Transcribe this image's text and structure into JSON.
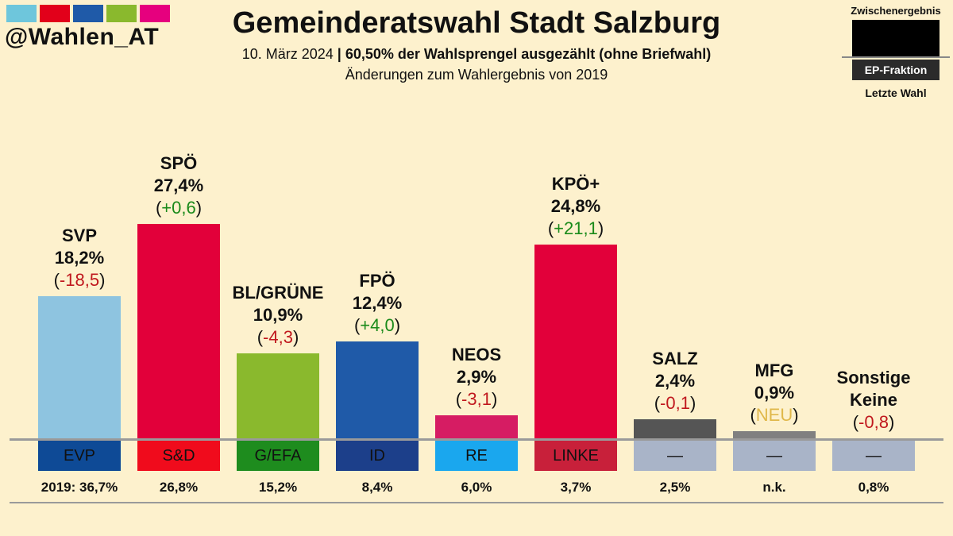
{
  "header": {
    "handle": "@Wahlen_AT",
    "title": "Gemeinderatswahl Stadt Salzburg",
    "date": "10. März 2024",
    "separator": "|",
    "status": "60,50% der Wahlsprengel ausgezählt (ohne Briefwahl)",
    "subtitle2": "Änderungen zum Wahlergebnis von 2019",
    "logo_colors": [
      "#6ec6dc",
      "#e2001a",
      "#1f5aa8",
      "#8ab92d",
      "#e6007e"
    ]
  },
  "legend": {
    "top": "Zwischenergebnis",
    "ep": "EP-Fraktion",
    "bottom": "Letzte Wahl"
  },
  "chart_data": {
    "type": "bar",
    "title": "Gemeinderatswahl Stadt Salzburg",
    "ylim": [
      0,
      30
    ],
    "categories": [
      "SVP",
      "SPÖ",
      "BL/GRÜNE",
      "FPÖ",
      "NEOS",
      "KPÖ+",
      "SALZ",
      "MFG",
      "Sonstige"
    ],
    "values": [
      18.2,
      27.4,
      10.9,
      12.4,
      2.9,
      24.8,
      2.4,
      0.9,
      0
    ],
    "parties": [
      {
        "name": "SVP",
        "value_label": "18,2%",
        "change": "-18,5",
        "change_type": "neg",
        "color": "#8ec4e0",
        "ep": "EVP",
        "ep_color": "#0e4a96",
        "ep_text": "#111111",
        "prev": "2019: 36,7%"
      },
      {
        "name": "SPÖ",
        "value_label": "27,4%",
        "change": "+0,6",
        "change_type": "pos",
        "color": "#e2003a",
        "ep": "S&D",
        "ep_color": "#f00b1c",
        "ep_text": "#111111",
        "prev": "26,8%"
      },
      {
        "name": "BL/GRÜNE",
        "value_label": "10,9%",
        "change": "-4,3",
        "change_type": "neg",
        "color": "#8ab92d",
        "ep": "G/EFA",
        "ep_color": "#1e8c1e",
        "ep_text": "#111111",
        "prev": "15,2%"
      },
      {
        "name": "FPÖ",
        "value_label": "12,4%",
        "change": "+4,0",
        "change_type": "pos",
        "color": "#1f5aa8",
        "ep": "ID",
        "ep_color": "#1c3f8a",
        "ep_text": "#111111",
        "prev": "8,4%"
      },
      {
        "name": "NEOS",
        "value_label": "2,9%",
        "change": "-3,1",
        "change_type": "neg",
        "color": "#d61c63",
        "ep": "RE",
        "ep_color": "#1aa7ee",
        "ep_text": "#111111",
        "prev": "6,0%"
      },
      {
        "name": "KPÖ+",
        "value_label": "24,8%",
        "change": "+21,1",
        "change_type": "pos",
        "color": "#e2003a",
        "ep": "LINKE",
        "ep_color": "#c8203a",
        "ep_text": "#111111",
        "prev": "3,7%"
      },
      {
        "name": "SALZ",
        "value_label": "2,4%",
        "change": "-0,1",
        "change_type": "neg",
        "color": "#555555",
        "ep": "—",
        "ep_color": "#a9b4c8",
        "ep_text": "#111111",
        "prev": "2,5%"
      },
      {
        "name": "MFG",
        "value_label": "0,9%",
        "change": "NEU",
        "change_type": "neu",
        "color": "#808080",
        "ep": "—",
        "ep_color": "#a9b4c8",
        "ep_text": "#111111",
        "prev": "n.k."
      },
      {
        "name": "Sonstige",
        "name2": "Keine",
        "value_label": "",
        "change": "-0,8",
        "change_type": "neg",
        "color": "#fdf1cd",
        "ep": "—",
        "ep_color": "#a9b4c8",
        "ep_text": "#111111",
        "prev": "0,8%"
      }
    ]
  }
}
